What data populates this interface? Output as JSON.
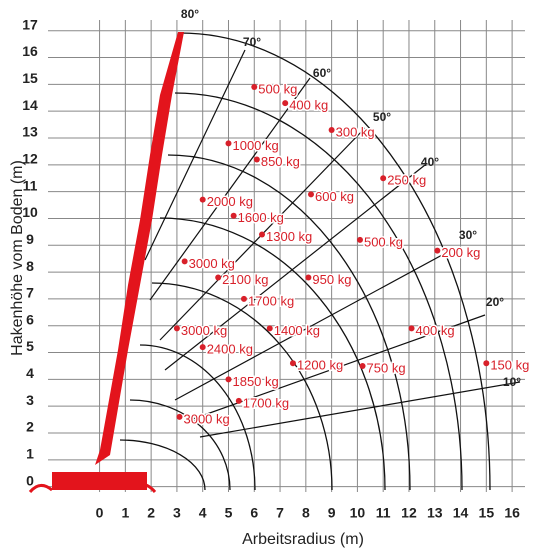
{
  "chart_data": {
    "type": "scatter",
    "x_label": "Arbeitsradius (m)",
    "y_label": "Hakenhöhe vom Boden (m)",
    "xlim": [
      -2,
      16.5
    ],
    "ylim": [
      -0.2,
      17.4
    ],
    "xticks": [
      0,
      1,
      2,
      3,
      4,
      5,
      6,
      7,
      8,
      9,
      10,
      11,
      12,
      13,
      14,
      15,
      16
    ],
    "yticks": [
      0,
      1,
      2,
      3,
      4,
      5,
      6,
      7,
      8,
      9,
      10,
      11,
      12,
      13,
      14,
      15,
      16,
      17
    ],
    "grid": true,
    "color": "#d8202a",
    "angles": [
      "10°",
      "20°",
      "30°",
      "40°",
      "50°",
      "60°",
      "70°",
      "80°"
    ],
    "series": [
      {
        "name": "loads",
        "x": [
          6.0,
          7.2,
          9.0,
          5.0,
          6.1,
          11.0,
          8.2,
          4.0,
          5.2,
          6.3,
          10.1,
          13.1,
          3.3,
          4.6,
          8.1,
          5.6,
          3.0,
          6.6,
          12.1,
          4.0,
          7.5,
          10.2,
          15.0,
          5.0,
          5.4,
          3.1
        ],
        "values": [
          14.9,
          14.3,
          13.3,
          12.8,
          12.2,
          11.5,
          10.9,
          10.7,
          10.1,
          9.4,
          9.2,
          8.8,
          8.4,
          7.8,
          7.8,
          7.0,
          5.9,
          5.9,
          5.9,
          5.2,
          4.6,
          4.5,
          4.6,
          4.0,
          3.2,
          2.6
        ],
        "value_labels": [
          "500 kg",
          "400 kg",
          "300 kg",
          "1000 kg",
          "850 kg",
          "250 kg",
          "600 kg",
          "2000 kg",
          "1600 kg",
          "1300 kg",
          "500 kg",
          "200 kg",
          "3000 kg",
          "2100 kg",
          "950 kg",
          "1700 kg",
          "3000 kg",
          "1400 kg",
          "400 kg",
          "2400 kg",
          "1200 kg",
          "750 kg",
          "150 kg",
          "1850 kg",
          "1700 kg",
          "3000 kg"
        ]
      }
    ]
  }
}
